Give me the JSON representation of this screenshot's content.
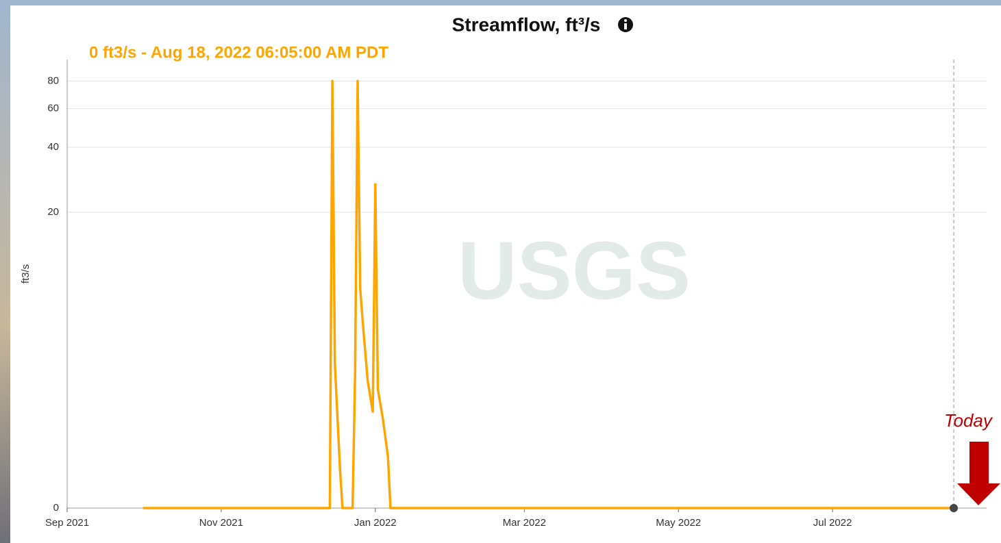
{
  "chart_data": {
    "type": "line",
    "title": "Streamflow, ft³/s",
    "subtitle": "0 ft3/s - Aug 18, 2022 06:05:00 AM PDT",
    "y_label": "ft3/s",
    "watermark": "USGS",
    "annotation": "Today",
    "color": "#ffa500",
    "yscale": "symlog",
    "grid": true,
    "x": [
      "2021-10-01",
      "2021-12-14",
      "2021-12-15",
      "2021-12-16",
      "2021-12-18",
      "2021-12-19",
      "2021-12-23",
      "2021-12-24",
      "2021-12-25",
      "2021-12-26",
      "2021-12-27",
      "2021-12-29",
      "2021-12-31",
      "2022-01-01",
      "2022-01-02",
      "2022-01-04",
      "2022-01-06",
      "2022-01-07",
      "2022-08-18"
    ],
    "values": [
      0,
      0,
      80,
      3.4,
      0.5,
      0,
      0,
      3,
      80,
      8.6,
      5.8,
      2.7,
      1.7,
      27,
      2.4,
      1.5,
      0.7,
      0,
      0
    ],
    "xlim": [
      "2021-09-01",
      "2022-08-31"
    ],
    "xticks": [
      {
        "value": "2021-09-01",
        "label": "Sep 2021"
      },
      {
        "value": "2021-11-01",
        "label": "Nov 2021"
      },
      {
        "value": "2022-01-01",
        "label": "Jan 2022"
      },
      {
        "value": "2022-03-01",
        "label": "Mar 2022"
      },
      {
        "value": "2022-05-01",
        "label": "May 2022"
      },
      {
        "value": "2022-07-01",
        "label": "Jul 2022"
      }
    ],
    "ylim": [
      0,
      100
    ],
    "yticks": [
      0,
      20,
      40,
      60,
      80
    ]
  }
}
